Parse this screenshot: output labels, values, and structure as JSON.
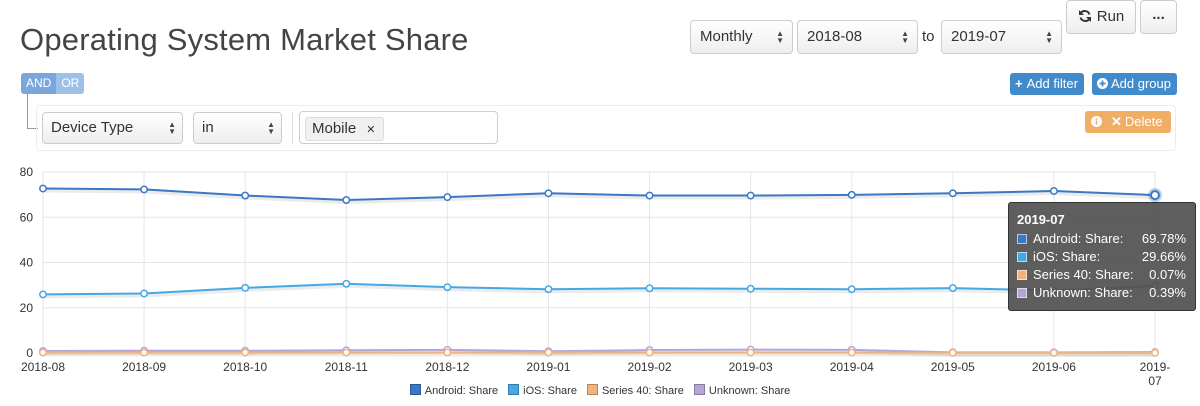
{
  "header": {
    "title": "Operating System Market Share",
    "period": "Monthly",
    "from": "2018-08",
    "to_label": "to",
    "to": "2019-07",
    "run_label": "Run",
    "more_label": "..."
  },
  "filters": {
    "and_label": "AND",
    "or_label": "OR",
    "add_filter_label": "Add filter",
    "add_group_label": "Add group",
    "field": "Device Type",
    "operator": "in",
    "value": "Mobile",
    "delete_label": "Delete"
  },
  "tooltip": {
    "title": "2019-07",
    "rows": [
      {
        "label": "Android: Share:",
        "value": "69.78%"
      },
      {
        "label": "iOS: Share:",
        "value": "29.66%"
      },
      {
        "label": "Series 40: Share:",
        "value": "0.07%"
      },
      {
        "label": "Unknown: Share:",
        "value": "0.39%"
      }
    ]
  },
  "chart_data": {
    "type": "line",
    "x": [
      "2018-08",
      "2018-09",
      "2018-10",
      "2018-11",
      "2018-12",
      "2019-01",
      "2019-02",
      "2019-03",
      "2019-04",
      "2019-05",
      "2019-06",
      "2019-07"
    ],
    "ylim": [
      0,
      80
    ],
    "yticks": [
      0,
      20,
      40,
      60,
      80
    ],
    "grid": true,
    "legend": "bottom",
    "series": [
      {
        "name": "Android: Share",
        "color": "#3a78c5",
        "values": [
          72.7,
          72.3,
          69.6,
          67.6,
          68.9,
          70.6,
          69.6,
          69.6,
          69.9,
          70.6,
          71.6,
          69.78
        ]
      },
      {
        "name": "iOS: Share",
        "color": "#45a7e6",
        "values": [
          25.9,
          26.3,
          28.8,
          30.6,
          29.1,
          28.2,
          28.6,
          28.4,
          28.2,
          28.7,
          27.6,
          29.66
        ]
      },
      {
        "name": "Series 40: Share",
        "color": "#f2b27a",
        "values": [
          0.2,
          0.2,
          0.2,
          0.2,
          0.2,
          0.2,
          0.2,
          0.2,
          0.2,
          0.1,
          0.1,
          0.07
        ]
      },
      {
        "name": "Unknown: Share",
        "color": "#b6a4d6",
        "values": [
          0.9,
          1.0,
          1.0,
          1.2,
          1.4,
          0.8,
          1.3,
          1.5,
          1.4,
          0.3,
          0.3,
          0.39
        ]
      }
    ]
  }
}
